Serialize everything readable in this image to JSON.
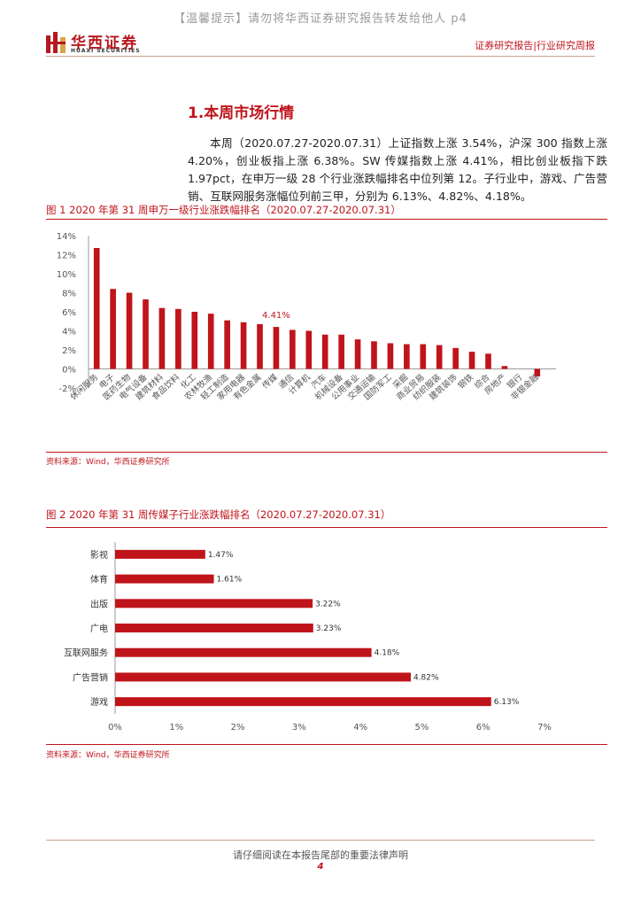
{
  "watermark": "【温馨提示】请勿将华西证券研究报告转发给他人 p4",
  "logo": {
    "name_cn": "华西证券",
    "name_en": "HUAXI SECURITIES"
  },
  "header": {
    "right": "证券研究报告|行业研究周报"
  },
  "section": {
    "title": "1.本周市场行情"
  },
  "paragraph": "本周（2020.07.27-2020.07.31）上证指数上涨 3.54%，沪深 300 指数上涨 4.20%，创业板指上涨 6.38%。SW 传媒指数上涨 4.41%，相比创业板指下跌 1.97pct，在申万一级 28 个行业涨跌幅排名中位列第 12。子行业中，游戏、广告营销、互联网服务涨幅位列前三甲，分别为 6.13%、4.82%、4.18%。",
  "figure1": {
    "caption": "图 1 2020 年第 31 周申万一级行业涨跌幅排名（2020.07.27-2020.07.31）",
    "source": "资料来源：Wind，华西证券研究所"
  },
  "figure2": {
    "caption": "图 2 2020 年第 31 周传媒子行业涨跌幅排名（2020.07.27-2020.07.31）",
    "source": "资料来源：Wind，华西证券研究所"
  },
  "footer": {
    "text": "请仔细阅读在本报告尾部的重要法律声明",
    "page": "4"
  },
  "colors": {
    "accent": "#c0141b",
    "bar": "#c0141b",
    "rule": "#c9a08a"
  },
  "chart_data": [
    {
      "type": "bar",
      "categories": [
        "休闲服务",
        "电子",
        "医药生物",
        "电气设备",
        "建筑材料",
        "食品饮料",
        "化工",
        "农林牧渔",
        "轻工制造",
        "家用电器",
        "有色金属",
        "传媒",
        "通信",
        "计算机",
        "汽车",
        "机械设备",
        "公用事业",
        "交通运输",
        "国防军工",
        "采掘",
        "商业贸易",
        "纺织服装",
        "建筑装饰",
        "钢铁",
        "综合",
        "房地产",
        "银行",
        "非银金融"
      ],
      "values": [
        12.7,
        8.4,
        8.0,
        7.3,
        6.4,
        6.3,
        6.0,
        5.8,
        5.1,
        4.9,
        4.7,
        4.41,
        4.1,
        4.0,
        3.6,
        3.6,
        3.1,
        2.9,
        2.7,
        2.6,
        2.6,
        2.5,
        2.2,
        1.8,
        1.6,
        0.3,
        0.0,
        -0.8
      ],
      "highlight": {
        "index": 11,
        "label": "4.41%"
      },
      "yticks": [
        "14%",
        "12%",
        "10%",
        "8%",
        "6%",
        "4%",
        "2%",
        "0%",
        "-2%"
      ],
      "ylim": [
        -2,
        14
      ],
      "title": "",
      "xlabel": "",
      "ylabel": "",
      "grid": false
    },
    {
      "type": "bar",
      "orientation": "horizontal",
      "categories": [
        "影视",
        "体育",
        "出版",
        "广电",
        "互联网服务",
        "广告营销",
        "游戏"
      ],
      "values": [
        1.47,
        1.61,
        3.22,
        3.23,
        4.18,
        4.82,
        6.13
      ],
      "labels": [
        "1.47%",
        "1.61%",
        "3.22%",
        "3.23%",
        "4.18%",
        "4.82%",
        "6.13%"
      ],
      "xticks": [
        "0%",
        "1%",
        "2%",
        "3%",
        "4%",
        "5%",
        "6%",
        "7%"
      ],
      "xlim": [
        0,
        7
      ],
      "title": "",
      "xlabel": "",
      "ylabel": "",
      "grid": false
    }
  ]
}
